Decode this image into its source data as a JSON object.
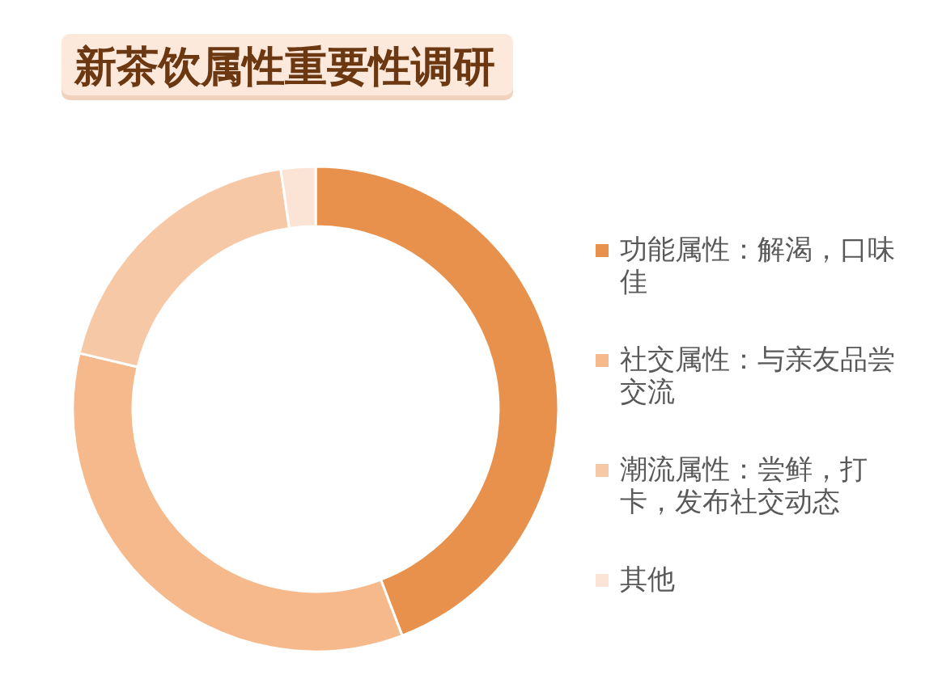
{
  "chart_data": {
    "type": "donut",
    "title": "新茶饮属性重要性调研",
    "categories": [
      "功能属性：解渴，口味佳",
      "社交属性：与亲友品尝交流",
      "潮流属性：尝鲜，打卡，发布社交动态",
      "其他"
    ],
    "values": [
      44.2,
      34.5,
      19.0,
      2.3
    ],
    "colors": [
      "#e8914c",
      "#f5b98b",
      "#f6c8a5",
      "#fbe4d6"
    ],
    "legend": "right"
  }
}
